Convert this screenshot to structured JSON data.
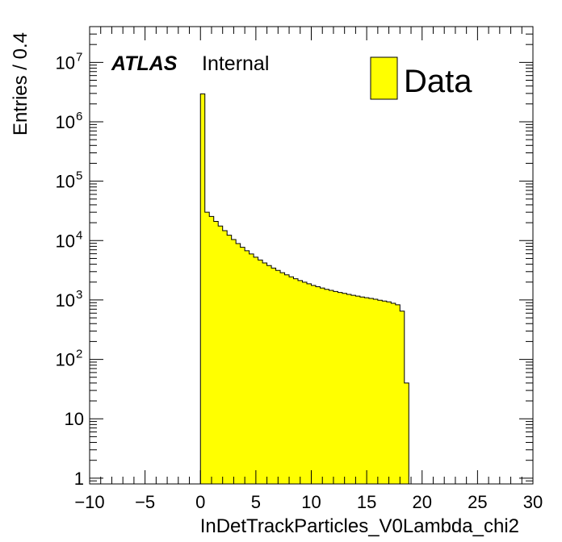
{
  "chart_data": {
    "type": "bar",
    "title": "",
    "xlabel": "InDetTrackParticles_V0Lambda_chi2",
    "ylabel": "Entries / 0.4",
    "xlim": [
      -10,
      30
    ],
    "ylim": [
      0.8,
      40000000
    ],
    "y_scale": "log",
    "bin_width": 0.4,
    "x_ticks": [
      -10,
      -5,
      0,
      5,
      10,
      15,
      20,
      25,
      30
    ],
    "x_tick_labels": [
      "−10",
      "−5",
      "0",
      "5",
      "10",
      "15",
      "20",
      "25",
      "30"
    ],
    "y_ticks": [
      1,
      10,
      100,
      1000,
      10000,
      100000,
      1000000,
      10000000
    ],
    "y_tick_labels": [
      {
        "base": "1",
        "exp": ""
      },
      {
        "base": "10",
        "exp": ""
      },
      {
        "base": "10",
        "exp": "2"
      },
      {
        "base": "10",
        "exp": "3"
      },
      {
        "base": "10",
        "exp": "4"
      },
      {
        "base": "10",
        "exp": "5"
      },
      {
        "base": "10",
        "exp": "6"
      },
      {
        "base": "10",
        "exp": "7"
      }
    ],
    "series": [
      {
        "name": "Data",
        "fill_color": "#ffff00",
        "line_color": "#000000",
        "bin_low_edges": [
          0.0,
          0.4,
          0.8,
          1.2,
          1.6,
          2.0,
          2.4,
          2.8,
          3.2,
          3.6,
          4.0,
          4.4,
          4.8,
          5.2,
          5.6,
          6.0,
          6.4,
          6.8,
          7.2,
          7.6,
          8.0,
          8.4,
          8.8,
          9.2,
          9.6,
          10.0,
          10.4,
          10.8,
          11.2,
          11.6,
          12.0,
          12.4,
          12.8,
          13.2,
          13.6,
          14.0,
          14.4,
          14.8,
          15.2,
          15.6,
          16.0,
          16.4,
          16.8,
          17.2,
          17.6,
          18.0,
          18.4
        ],
        "values": [
          2950000,
          30000,
          25500,
          21000,
          17600,
          14700,
          12300,
          10400,
          8900,
          7700,
          6750,
          5950,
          5250,
          4700,
          4200,
          3800,
          3450,
          3150,
          2880,
          2650,
          2450,
          2280,
          2120,
          1990,
          1870,
          1760,
          1670,
          1590,
          1510,
          1450,
          1390,
          1340,
          1290,
          1240,
          1200,
          1160,
          1120,
          1090,
          1060,
          1030,
          990,
          960,
          930,
          880,
          830,
          650,
          40
        ]
      }
    ],
    "legend": {
      "position": "top-right",
      "label": "Data"
    },
    "annotations": {
      "experiment": "ATLAS",
      "status": "Internal"
    },
    "colors": {
      "fill": "#ffff00",
      "line": "#000000",
      "background": "#ffffff"
    }
  }
}
